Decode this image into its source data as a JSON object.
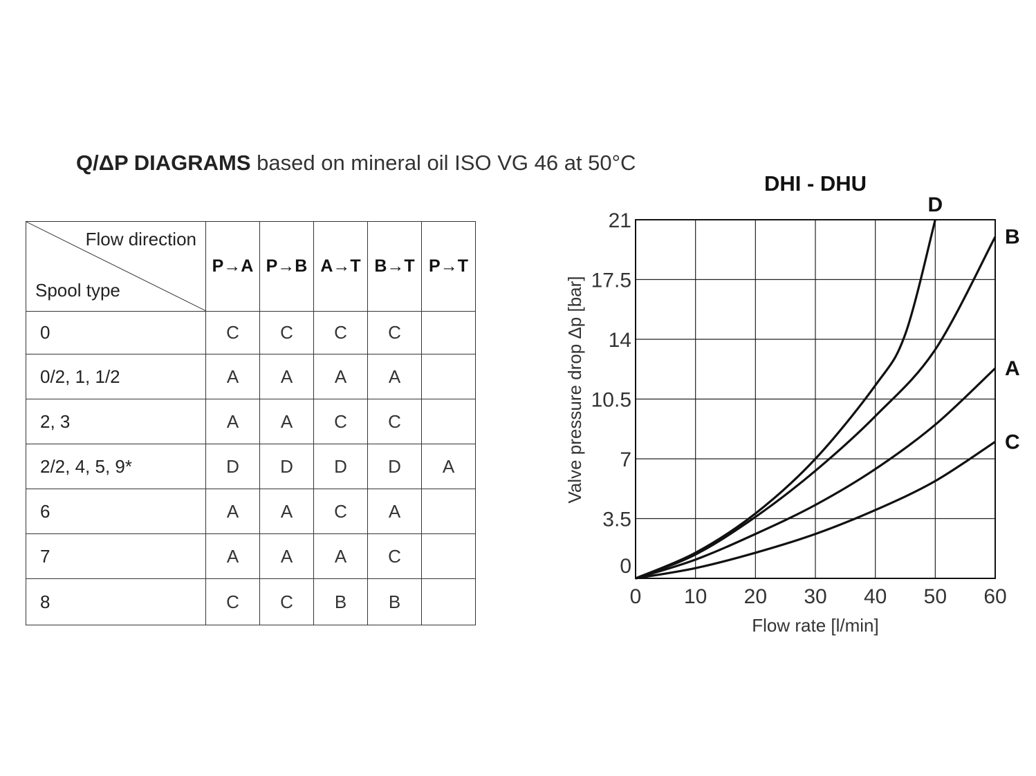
{
  "heading": {
    "bold": "Q/ΔP DIAGRAMS",
    "rest": " based on mineral oil ISO VG 46 at 50°C"
  },
  "table": {
    "corner_top": "Flow direction",
    "corner_bottom": "Spool type",
    "columns": [
      "P→A",
      "P→B",
      "A→T",
      "B→T",
      "P→T"
    ],
    "rows": [
      {
        "spool": "0",
        "values": [
          "C",
          "C",
          "C",
          "C",
          ""
        ]
      },
      {
        "spool": "0/2, 1, 1/2",
        "values": [
          "A",
          "A",
          "A",
          "A",
          ""
        ]
      },
      {
        "spool": "2, 3",
        "values": [
          "A",
          "A",
          "C",
          "C",
          ""
        ]
      },
      {
        "spool": "2/2, 4, 5, 9*",
        "values": [
          "D",
          "D",
          "D",
          "D",
          "A"
        ]
      },
      {
        "spool": "6",
        "values": [
          "A",
          "A",
          "C",
          "A",
          ""
        ]
      },
      {
        "spool": "7",
        "values": [
          "A",
          "A",
          "A",
          "C",
          ""
        ]
      },
      {
        "spool": "8",
        "values": [
          "C",
          "C",
          "B",
          "B",
          ""
        ]
      }
    ]
  },
  "chart_data": {
    "type": "line",
    "title": "DHI - DHU",
    "xlabel": "Flow rate [l/min]",
    "ylabel": "Valve pressure drop Δp [bar]",
    "xlim": [
      0,
      60
    ],
    "ylim": [
      0,
      21
    ],
    "xticks": [
      0,
      10,
      20,
      30,
      40,
      50,
      60
    ],
    "ytick_labels": [
      "0",
      "3.5",
      "7",
      "10.5",
      "14",
      "17.5",
      "21"
    ],
    "grid": true,
    "series": [
      {
        "name": "D",
        "x": [
          0,
          10,
          20,
          30,
          40,
          45,
          50
        ],
        "y": [
          0,
          1.5,
          3.8,
          7.0,
          11.3,
          14.3,
          21.0
        ]
      },
      {
        "name": "B",
        "x": [
          0,
          10,
          20,
          30,
          40,
          50,
          60
        ],
        "y": [
          0,
          1.4,
          3.6,
          6.3,
          9.5,
          13.4,
          20.0
        ]
      },
      {
        "name": "A",
        "x": [
          0,
          10,
          20,
          30,
          40,
          50,
          60
        ],
        "y": [
          0,
          1.1,
          2.6,
          4.3,
          6.4,
          9.0,
          12.3
        ]
      },
      {
        "name": "C",
        "x": [
          0,
          10,
          20,
          30,
          40,
          50,
          60
        ],
        "y": [
          0,
          0.6,
          1.5,
          2.6,
          4.0,
          5.7,
          8.0
        ]
      }
    ]
  }
}
